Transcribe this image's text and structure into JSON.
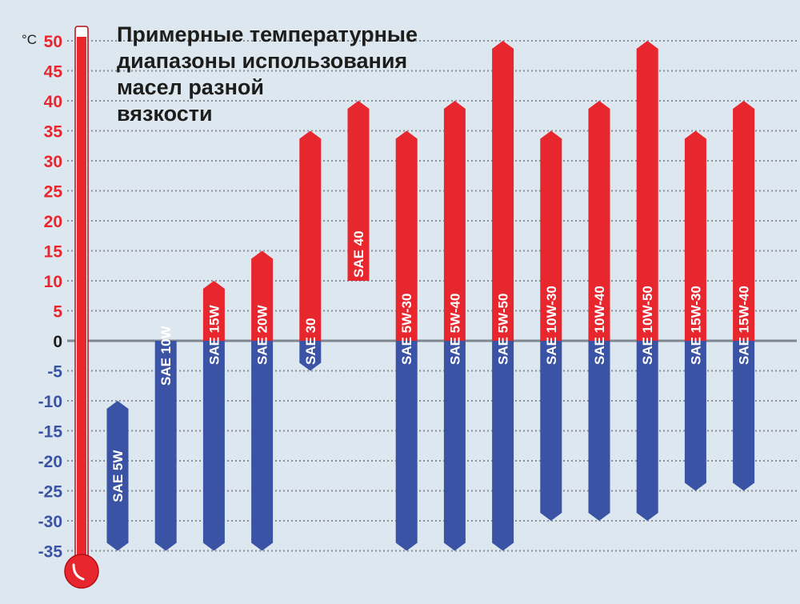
{
  "chart_data": {
    "type": "bar",
    "title_lines": [
      "Примерные температурные",
      "диапазоны использования",
      "масел разной",
      "вязкости"
    ],
    "unit": "°C",
    "ylim": [
      -35,
      50
    ],
    "y_ticks": [
      {
        "value": 50,
        "label": "50"
      },
      {
        "value": 45,
        "label": "45"
      },
      {
        "value": 40,
        "label": "40"
      },
      {
        "value": 35,
        "label": "35"
      },
      {
        "value": 30,
        "label": "30"
      },
      {
        "value": 25,
        "label": "25"
      },
      {
        "value": 20,
        "label": "20"
      },
      {
        "value": 15,
        "label": "15"
      },
      {
        "value": 10,
        "label": "10"
      },
      {
        "value": 5,
        "label": "5"
      },
      {
        "value": 0,
        "label": "0"
      },
      {
        "value": -5,
        "label": "-5"
      },
      {
        "value": -10,
        "label": "-10"
      },
      {
        "value": -15,
        "label": "-15"
      },
      {
        "value": -20,
        "label": "-20"
      },
      {
        "value": -25,
        "label": "-25"
      },
      {
        "value": -30,
        "label": "-30"
      },
      {
        "value": -35,
        "label": "-35"
      }
    ],
    "grid": true,
    "colors": {
      "warm": "#e8262d",
      "cold": "#3b53a4",
      "grid": "#8a8f96",
      "zero_line": "#7f878f",
      "positive_tick": "#e8262d",
      "negative_tick": "#3b53a4",
      "zero_tick": "#1d1d1b",
      "thermometer": "#e8262d"
    },
    "categories": [
      "SAE 5W",
      "SAE 10W",
      "SAE 15W",
      "SAE 20W",
      "SAE 30",
      "SAE 40",
      "SAE 5W-30",
      "SAE 5W-40",
      "SAE 5W-50",
      "SAE 10W-30",
      "SAE 10W-40",
      "SAE 10W-50",
      "SAE 15W-30",
      "SAE 15W-40"
    ],
    "ranges": [
      {
        "label": "SAE 5W",
        "min": -35,
        "max": -10
      },
      {
        "label": "SAE 10W",
        "min": -35,
        "max": 0
      },
      {
        "label": "SAE 15W",
        "min": -35,
        "max": 10
      },
      {
        "label": "SAE 20W",
        "min": -35,
        "max": 15
      },
      {
        "label": "SAE 30",
        "min": -5,
        "max": 35
      },
      {
        "label": "SAE 40",
        "min": 10,
        "max": 40
      },
      {
        "label": "SAE 5W-30",
        "min": -35,
        "max": 35
      },
      {
        "label": "SAE 5W-40",
        "min": -35,
        "max": 40
      },
      {
        "label": "SAE 5W-50",
        "min": -35,
        "max": 50
      },
      {
        "label": "SAE 10W-30",
        "min": -30,
        "max": 35
      },
      {
        "label": "SAE 10W-40",
        "min": -30,
        "max": 40
      },
      {
        "label": "SAE 10W-50",
        "min": -30,
        "max": 50
      },
      {
        "label": "SAE 15W-30",
        "min": -25,
        "max": 35
      },
      {
        "label": "SAE 15W-40",
        "min": -25,
        "max": 40
      }
    ]
  }
}
